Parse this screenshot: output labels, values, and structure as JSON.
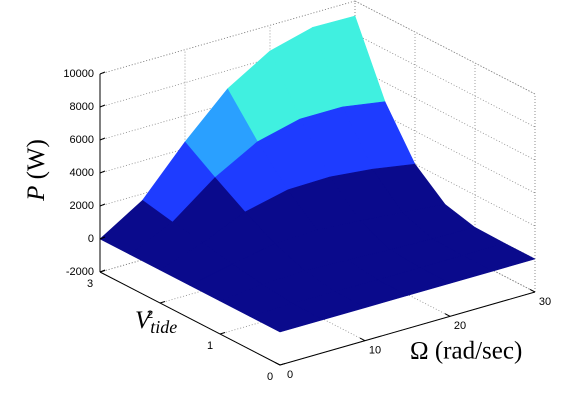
{
  "chart_data": {
    "type": "surface",
    "xlabel": "Ω (rad/sec)",
    "ylabel": {
      "symbol": "V",
      "sub": "tide"
    },
    "zlabel": {
      "symbol": "P",
      "unit": "(W)"
    },
    "x": [
      0,
      5,
      10,
      15,
      20,
      25,
      30
    ],
    "y": [
      0,
      0.5,
      1,
      1.5,
      2,
      2.5,
      3
    ],
    "z": [
      [
        0,
        0,
        0,
        0,
        0,
        0,
        0
      ],
      [
        0,
        43,
        18,
        4,
        1,
        0,
        0
      ],
      [
        0,
        255,
        337,
        249,
        146,
        75,
        34
      ],
      [
        0,
        551,
        1056,
        1136,
        964,
        723,
        494
      ],
      [
        0,
        898,
        2040,
        2638,
        2693,
        2421,
        1986
      ],
      [
        0,
        1222,
        3188,
        4622,
        5260,
        5260,
        4835
      ],
      [
        0,
        1607,
        4406,
        6885,
        8446,
        9134,
        9088
      ]
    ],
    "xlim": [
      0,
      30
    ],
    "ylim": [
      0,
      3
    ],
    "zlim": [
      -2000,
      10000
    ],
    "xticks": [
      0,
      10,
      20,
      30
    ],
    "yticks": [
      0,
      1,
      2,
      3
    ],
    "zticks": [
      -2000,
      0,
      2000,
      4000,
      6000,
      8000,
      10000
    ],
    "clim": [
      0,
      10000
    ],
    "colormap": [
      "#0a0a8c",
      "#1e3cff",
      "#2aa0ff",
      "#40f0e0",
      "#f0f040"
    ],
    "grid": true
  }
}
